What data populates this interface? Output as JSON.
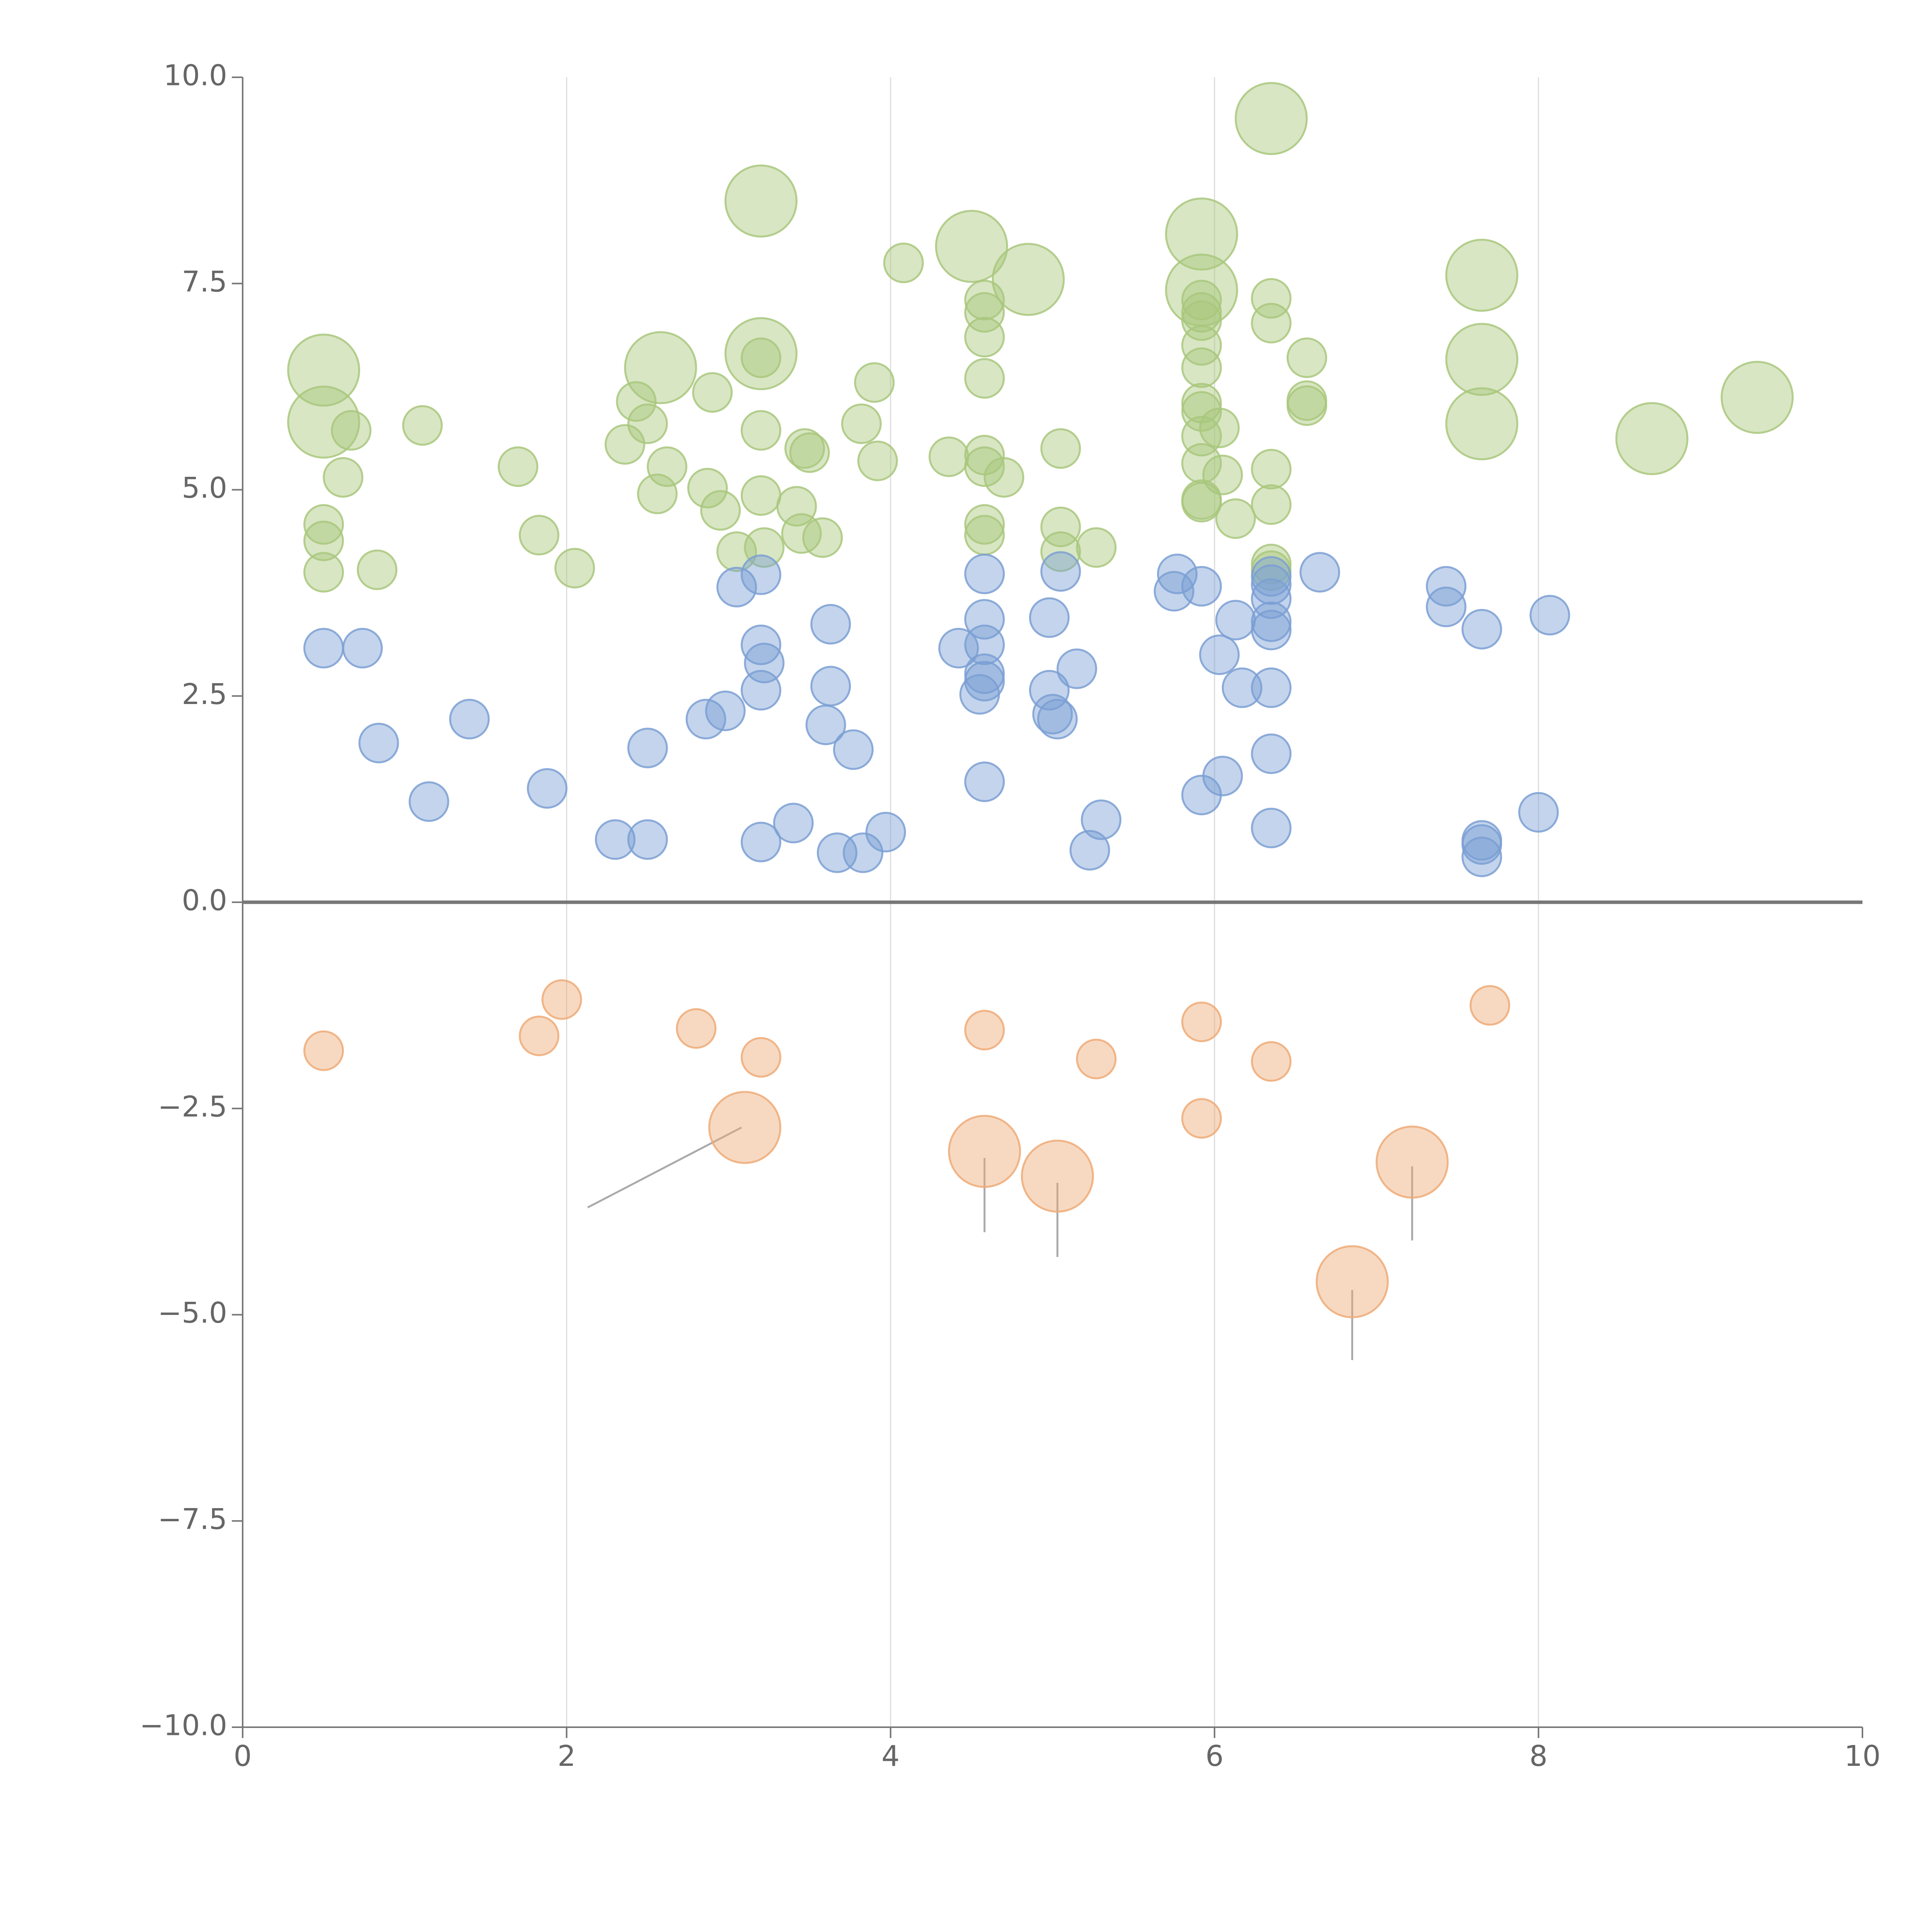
{
  "chart_data": {
    "type": "scatter",
    "subtype": "bubble",
    "title": "",
    "xlabel": "",
    "ylabel": "",
    "xlim": [
      0,
      10
    ],
    "ylim": [
      -10,
      10
    ],
    "x_ticks": [
      0,
      2,
      4,
      6,
      8,
      10
    ],
    "x_tick_labels": [
      "0",
      "2",
      "4",
      "6",
      "8",
      "10"
    ],
    "y_ticks": [
      10,
      7.5,
      5,
      2.5,
      0,
      -2.5,
      -5,
      -7.5,
      -10
    ],
    "y_tick_labels": [
      "10.0",
      "7.5",
      "5.0",
      "2.5",
      "0.0",
      "−2.5",
      "−5.0",
      "−7.5",
      "−10.0"
    ],
    "grid": "vertical",
    "legend": "none",
    "colors": {
      "green": "#a9c77c",
      "blue": "#7b9fd4",
      "orange": "#eeaa77",
      "axis": "#777777",
      "grid": "#dddddd"
    },
    "series": [
      {
        "name": "green",
        "color": "green",
        "points": [
          {
            "x": 0.5,
            "y": 6.45,
            "s": 2
          },
          {
            "x": 0.5,
            "y": 5.82,
            "s": 2
          },
          {
            "x": 0.67,
            "y": 5.72,
            "s": 1
          },
          {
            "x": 0.62,
            "y": 5.15,
            "s": 1
          },
          {
            "x": 0.5,
            "y": 4.58,
            "s": 1
          },
          {
            "x": 0.5,
            "y": 4.38,
            "s": 1
          },
          {
            "x": 0.5,
            "y": 4.0,
            "s": 1
          },
          {
            "x": 0.83,
            "y": 4.03,
            "s": 1
          },
          {
            "x": 1.11,
            "y": 5.78,
            "s": 1
          },
          {
            "x": 1.7,
            "y": 5.28,
            "s": 1
          },
          {
            "x": 1.83,
            "y": 4.45,
            "s": 1
          },
          {
            "x": 2.05,
            "y": 4.05,
            "s": 1
          },
          {
            "x": 2.36,
            "y": 5.55,
            "s": 1
          },
          {
            "x": 2.43,
            "y": 6.07,
            "s": 1
          },
          {
            "x": 2.5,
            "y": 5.8,
            "s": 1
          },
          {
            "x": 2.58,
            "y": 6.48,
            "s": 2
          },
          {
            "x": 2.56,
            "y": 4.95,
            "s": 1
          },
          {
            "x": 2.62,
            "y": 5.28,
            "s": 1
          },
          {
            "x": 2.87,
            "y": 5.02,
            "s": 1
          },
          {
            "x": 2.9,
            "y": 6.18,
            "s": 1
          },
          {
            "x": 2.95,
            "y": 4.75,
            "s": 1
          },
          {
            "x": 3.05,
            "y": 4.25,
            "s": 1
          },
          {
            "x": 3.2,
            "y": 8.5,
            "s": 2
          },
          {
            "x": 3.2,
            "y": 6.65,
            "s": 2
          },
          {
            "x": 3.2,
            "y": 6.6,
            "s": 1
          },
          {
            "x": 3.2,
            "y": 5.72,
            "s": 1
          },
          {
            "x": 3.2,
            "y": 4.93,
            "s": 1
          },
          {
            "x": 3.22,
            "y": 4.3,
            "s": 1
          },
          {
            "x": 3.42,
            "y": 4.8,
            "s": 1
          },
          {
            "x": 3.45,
            "y": 4.47,
            "s": 1
          },
          {
            "x": 3.47,
            "y": 5.5,
            "s": 1
          },
          {
            "x": 3.5,
            "y": 5.45,
            "s": 1
          },
          {
            "x": 3.58,
            "y": 4.42,
            "s": 1
          },
          {
            "x": 3.82,
            "y": 5.8,
            "s": 1
          },
          {
            "x": 3.9,
            "y": 6.3,
            "s": 1
          },
          {
            "x": 3.92,
            "y": 5.35,
            "s": 1
          },
          {
            "x": 4.08,
            "y": 7.75,
            "s": 1
          },
          {
            "x": 4.36,
            "y": 5.4,
            "s": 1
          },
          {
            "x": 4.5,
            "y": 7.95,
            "s": 2
          },
          {
            "x": 4.58,
            "y": 7.3,
            "s": 1
          },
          {
            "x": 4.58,
            "y": 7.15,
            "s": 1
          },
          {
            "x": 4.58,
            "y": 6.85,
            "s": 1
          },
          {
            "x": 4.58,
            "y": 6.35,
            "s": 1
          },
          {
            "x": 4.58,
            "y": 5.42,
            "s": 1
          },
          {
            "x": 4.58,
            "y": 5.28,
            "s": 1
          },
          {
            "x": 4.7,
            "y": 5.15,
            "s": 1
          },
          {
            "x": 4.58,
            "y": 4.58,
            "s": 1
          },
          {
            "x": 4.58,
            "y": 4.45,
            "s": 1
          },
          {
            "x": 4.85,
            "y": 7.55,
            "s": 2
          },
          {
            "x": 5.05,
            "y": 5.5,
            "s": 1
          },
          {
            "x": 5.05,
            "y": 4.55,
            "s": 1
          },
          {
            "x": 5.05,
            "y": 4.25,
            "s": 1
          },
          {
            "x": 5.27,
            "y": 4.3,
            "s": 1
          },
          {
            "x": 5.92,
            "y": 8.1,
            "s": 2
          },
          {
            "x": 5.92,
            "y": 7.42,
            "s": 2
          },
          {
            "x": 5.92,
            "y": 7.3,
            "s": 1
          },
          {
            "x": 5.92,
            "y": 7.15,
            "s": 1
          },
          {
            "x": 5.92,
            "y": 7.05,
            "s": 1
          },
          {
            "x": 5.92,
            "y": 6.75,
            "s": 1
          },
          {
            "x": 5.92,
            "y": 6.48,
            "s": 1
          },
          {
            "x": 5.92,
            "y": 6.05,
            "s": 1
          },
          {
            "x": 5.92,
            "y": 5.95,
            "s": 1
          },
          {
            "x": 5.92,
            "y": 5.65,
            "s": 1
          },
          {
            "x": 6.03,
            "y": 5.75,
            "s": 1
          },
          {
            "x": 5.92,
            "y": 5.32,
            "s": 1
          },
          {
            "x": 6.05,
            "y": 5.18,
            "s": 1
          },
          {
            "x": 5.92,
            "y": 4.88,
            "s": 1
          },
          {
            "x": 5.92,
            "y": 4.85,
            "s": 1
          },
          {
            "x": 6.13,
            "y": 4.65,
            "s": 1
          },
          {
            "x": 6.35,
            "y": 9.5,
            "s": 2
          },
          {
            "x": 6.35,
            "y": 7.32,
            "s": 1
          },
          {
            "x": 6.35,
            "y": 7.02,
            "s": 1
          },
          {
            "x": 6.35,
            "y": 5.25,
            "s": 1
          },
          {
            "x": 6.35,
            "y": 4.82,
            "s": 1
          },
          {
            "x": 6.35,
            "y": 4.1,
            "s": 1
          },
          {
            "x": 6.35,
            "y": 4.02,
            "s": 1
          },
          {
            "x": 6.57,
            "y": 6.6,
            "s": 1
          },
          {
            "x": 6.57,
            "y": 6.08,
            "s": 1
          },
          {
            "x": 6.57,
            "y": 6.02,
            "s": 1
          },
          {
            "x": 7.65,
            "y": 7.6,
            "s": 2
          },
          {
            "x": 7.65,
            "y": 6.58,
            "s": 2
          },
          {
            "x": 7.65,
            "y": 5.8,
            "s": 2
          },
          {
            "x": 8.7,
            "y": 5.62,
            "s": 2
          },
          {
            "x": 9.35,
            "y": 6.12,
            "s": 2
          }
        ]
      },
      {
        "name": "blue",
        "color": "blue",
        "points": [
          {
            "x": 0.5,
            "y": 3.08,
            "s": 1
          },
          {
            "x": 0.74,
            "y": 3.08,
            "s": 1
          },
          {
            "x": 0.84,
            "y": 1.93,
            "s": 1
          },
          {
            "x": 1.15,
            "y": 1.22,
            "s": 1
          },
          {
            "x": 1.4,
            "y": 2.22,
            "s": 1
          },
          {
            "x": 1.88,
            "y": 1.38,
            "s": 1
          },
          {
            "x": 2.3,
            "y": 0.76,
            "s": 1
          },
          {
            "x": 2.5,
            "y": 0.76,
            "s": 1
          },
          {
            "x": 2.5,
            "y": 1.87,
            "s": 1
          },
          {
            "x": 2.86,
            "y": 2.22,
            "s": 1
          },
          {
            "x": 2.98,
            "y": 2.32,
            "s": 1
          },
          {
            "x": 3.05,
            "y": 3.82,
            "s": 1
          },
          {
            "x": 3.2,
            "y": 3.97,
            "s": 1
          },
          {
            "x": 3.2,
            "y": 3.12,
            "s": 1
          },
          {
            "x": 3.22,
            "y": 2.9,
            "s": 1
          },
          {
            "x": 3.2,
            "y": 2.57,
            "s": 1
          },
          {
            "x": 3.2,
            "y": 0.73,
            "s": 1
          },
          {
            "x": 3.4,
            "y": 0.96,
            "s": 1
          },
          {
            "x": 3.6,
            "y": 2.15,
            "s": 1
          },
          {
            "x": 3.63,
            "y": 2.62,
            "s": 1
          },
          {
            "x": 3.63,
            "y": 3.37,
            "s": 1
          },
          {
            "x": 3.67,
            "y": 0.6,
            "s": 1
          },
          {
            "x": 3.77,
            "y": 1.85,
            "s": 1
          },
          {
            "x": 3.83,
            "y": 0.6,
            "s": 1
          },
          {
            "x": 3.97,
            "y": 0.85,
            "s": 1
          },
          {
            "x": 4.42,
            "y": 3.08,
            "s": 1
          },
          {
            "x": 4.58,
            "y": 3.98,
            "s": 1
          },
          {
            "x": 4.58,
            "y": 3.43,
            "s": 1
          },
          {
            "x": 4.58,
            "y": 3.12,
            "s": 1
          },
          {
            "x": 4.58,
            "y": 2.77,
            "s": 1
          },
          {
            "x": 4.58,
            "y": 2.68,
            "s": 1
          },
          {
            "x": 4.55,
            "y": 2.52,
            "s": 1
          },
          {
            "x": 4.58,
            "y": 1.46,
            "s": 1
          },
          {
            "x": 4.98,
            "y": 3.45,
            "s": 1
          },
          {
            "x": 4.98,
            "y": 2.57,
            "s": 1
          },
          {
            "x": 5.0,
            "y": 2.28,
            "s": 1
          },
          {
            "x": 5.03,
            "y": 2.22,
            "s": 1
          },
          {
            "x": 5.05,
            "y": 4.01,
            "s": 1
          },
          {
            "x": 5.15,
            "y": 2.83,
            "s": 1
          },
          {
            "x": 5.23,
            "y": 0.63,
            "s": 1
          },
          {
            "x": 5.3,
            "y": 1.0,
            "s": 1
          },
          {
            "x": 5.77,
            "y": 3.98,
            "s": 1
          },
          {
            "x": 5.75,
            "y": 3.77,
            "s": 1
          },
          {
            "x": 5.92,
            "y": 3.83,
            "s": 1
          },
          {
            "x": 5.92,
            "y": 1.3,
            "s": 1
          },
          {
            "x": 6.03,
            "y": 3.0,
            "s": 1
          },
          {
            "x": 6.05,
            "y": 1.53,
            "s": 1
          },
          {
            "x": 6.13,
            "y": 3.42,
            "s": 1
          },
          {
            "x": 6.17,
            "y": 2.6,
            "s": 1
          },
          {
            "x": 6.35,
            "y": 3.95,
            "s": 1
          },
          {
            "x": 6.35,
            "y": 3.85,
            "s": 1
          },
          {
            "x": 6.35,
            "y": 3.68,
            "s": 1
          },
          {
            "x": 6.35,
            "y": 3.4,
            "s": 1
          },
          {
            "x": 6.35,
            "y": 3.3,
            "s": 1
          },
          {
            "x": 6.35,
            "y": 2.6,
            "s": 1
          },
          {
            "x": 6.35,
            "y": 1.8,
            "s": 1
          },
          {
            "x": 6.35,
            "y": 0.9,
            "s": 1
          },
          {
            "x": 6.65,
            "y": 4.0,
            "s": 1
          },
          {
            "x": 7.43,
            "y": 3.83,
            "s": 1
          },
          {
            "x": 7.43,
            "y": 3.58,
            "s": 1
          },
          {
            "x": 7.65,
            "y": 3.31,
            "s": 1
          },
          {
            "x": 7.65,
            "y": 0.75,
            "s": 1
          },
          {
            "x": 7.65,
            "y": 0.7,
            "s": 1
          },
          {
            "x": 7.65,
            "y": 0.55,
            "s": 1
          },
          {
            "x": 8.0,
            "y": 1.09,
            "s": 1
          },
          {
            "x": 8.07,
            "y": 3.48,
            "s": 1
          }
        ]
      },
      {
        "name": "orange",
        "color": "orange",
        "points": [
          {
            "x": 0.5,
            "y": -1.8,
            "s": 1
          },
          {
            "x": 1.83,
            "y": -1.62,
            "s": 1
          },
          {
            "x": 1.97,
            "y": -1.18,
            "s": 1
          },
          {
            "x": 2.8,
            "y": -1.53,
            "s": 1
          },
          {
            "x": 3.2,
            "y": -1.88,
            "s": 1
          },
          {
            "x": 3.1,
            "y": -2.73,
            "s": 2
          },
          {
            "x": 4.58,
            "y": -1.55,
            "s": 1
          },
          {
            "x": 4.58,
            "y": -3.02,
            "s": 2
          },
          {
            "x": 5.03,
            "y": -3.32,
            "s": 2
          },
          {
            "x": 5.27,
            "y": -1.9,
            "s": 1
          },
          {
            "x": 5.92,
            "y": -1.45,
            "s": 1
          },
          {
            "x": 5.92,
            "y": -2.62,
            "s": 1
          },
          {
            "x": 6.35,
            "y": -1.93,
            "s": 1
          },
          {
            "x": 6.85,
            "y": -4.6,
            "s": 2
          },
          {
            "x": 7.22,
            "y": -3.15,
            "s": 2
          },
          {
            "x": 7.7,
            "y": -1.25,
            "s": 1
          }
        ]
      }
    ],
    "annotation_lines": [
      {
        "from": [
          3.08,
          -2.73
        ],
        "to": [
          2.13,
          -3.7
        ]
      },
      {
        "from": [
          4.58,
          -3.1
        ],
        "to": [
          4.58,
          -4.0
        ]
      },
      {
        "from": [
          5.03,
          -3.4
        ],
        "to": [
          5.03,
          -4.3
        ]
      },
      {
        "from": [
          6.85,
          -4.7
        ],
        "to": [
          6.85,
          -5.55
        ]
      },
      {
        "from": [
          7.22,
          -3.2
        ],
        "to": [
          7.22,
          -4.1
        ]
      }
    ]
  }
}
